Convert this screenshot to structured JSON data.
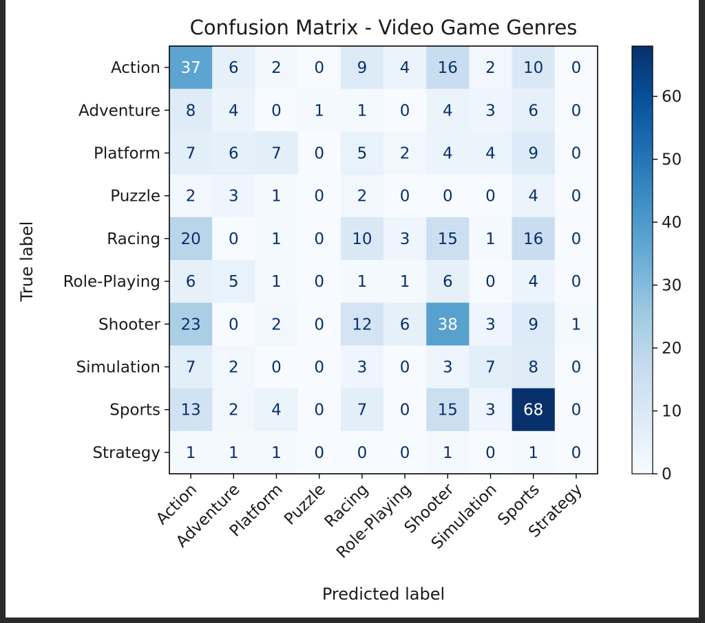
{
  "chart_data": {
    "type": "heatmap",
    "title": "Confusion Matrix - Video Game Genres",
    "xlabel": "Predicted label",
    "ylabel": "True label",
    "labels": [
      "Action",
      "Adventure",
      "Platform",
      "Puzzle",
      "Racing",
      "Role-Playing",
      "Shooter",
      "Simulation",
      "Sports",
      "Strategy"
    ],
    "matrix": [
      [
        37,
        6,
        2,
        0,
        9,
        4,
        16,
        2,
        10,
        0
      ],
      [
        8,
        4,
        0,
        1,
        1,
        0,
        4,
        3,
        6,
        0
      ],
      [
        7,
        6,
        7,
        0,
        5,
        2,
        4,
        4,
        9,
        0
      ],
      [
        2,
        3,
        1,
        0,
        2,
        0,
        0,
        0,
        4,
        0
      ],
      [
        20,
        0,
        1,
        0,
        10,
        3,
        15,
        1,
        16,
        0
      ],
      [
        6,
        5,
        1,
        0,
        1,
        1,
        6,
        0,
        4,
        0
      ],
      [
        23,
        0,
        2,
        0,
        12,
        6,
        38,
        3,
        9,
        1
      ],
      [
        7,
        2,
        0,
        0,
        3,
        0,
        3,
        7,
        8,
        0
      ],
      [
        13,
        2,
        4,
        0,
        7,
        0,
        15,
        3,
        68,
        0
      ],
      [
        1,
        1,
        1,
        0,
        0,
        0,
        1,
        0,
        1,
        0
      ]
    ],
    "colormap": "Blues",
    "vmin": 0,
    "vmax": 68,
    "colorbar_ticks": [
      0,
      10,
      20,
      30,
      40,
      50,
      60
    ]
  }
}
